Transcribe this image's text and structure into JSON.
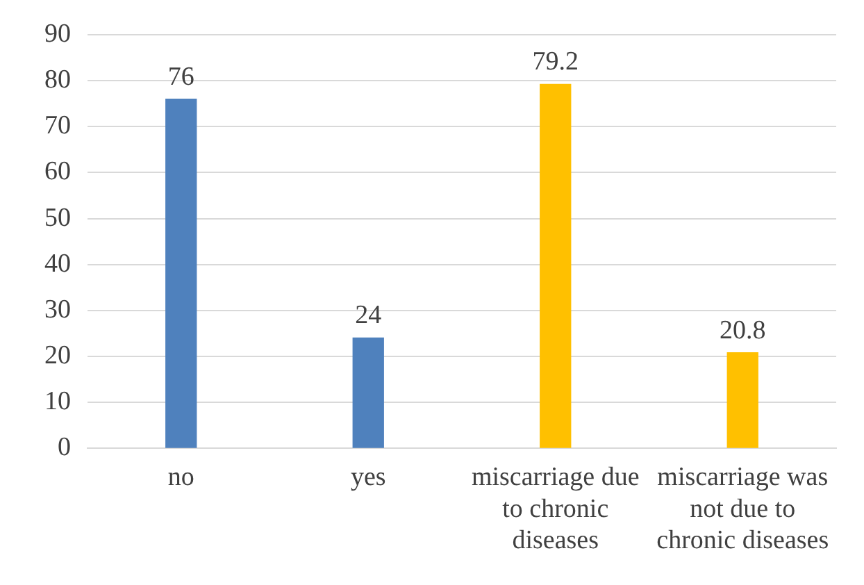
{
  "chart_data": {
    "type": "bar",
    "categories": [
      "no",
      "yes",
      "miscarriage due to chronic diseases",
      "miscarriage was not due to chronic diseases"
    ],
    "values": [
      76,
      24,
      79.2,
      20.8
    ],
    "colors": [
      "#4f81bd",
      "#4f81bd",
      "#ffc000",
      "#ffc000"
    ],
    "ylim": [
      0,
      90
    ],
    "yticks": [
      0,
      10,
      20,
      30,
      40,
      50,
      60,
      70,
      80,
      90
    ],
    "grid": "y",
    "data_labels": true,
    "legend": false
  }
}
